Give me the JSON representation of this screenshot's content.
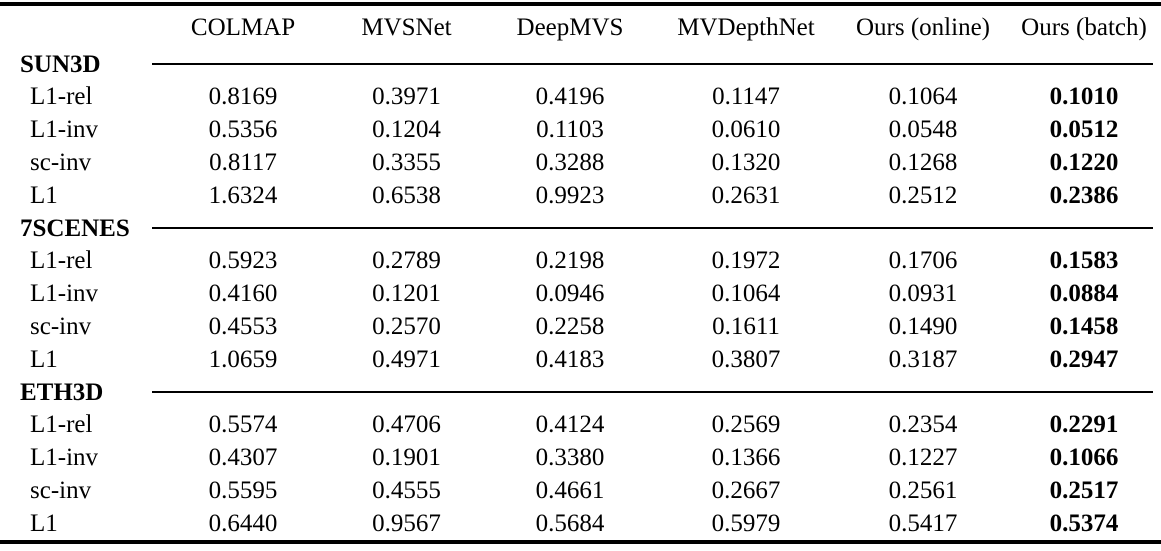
{
  "page": {
    "background": "#ffffff",
    "text_color": "#000000",
    "rule_color": "#000000"
  },
  "table": {
    "corner_label": "",
    "columns": [
      "",
      "COLMAP",
      "MVSNet",
      "DeepMVS",
      "MVDepthNet",
      "Ours (online)",
      "Ours (batch)"
    ],
    "best_column": "Ours (batch)",
    "best_column_style": "bold",
    "metrics": [
      "L1-rel",
      "L1-inv",
      "sc-inv",
      "L1"
    ],
    "sections": [
      {
        "name": "SUN3D",
        "rows": [
          {
            "metric": "L1-rel",
            "values": [
              "0.8169",
              "0.3971",
              "0.4196",
              "0.1147",
              "0.1064",
              "0.1010"
            ]
          },
          {
            "metric": "L1-inv",
            "values": [
              "0.5356",
              "0.1204",
              "0.1103",
              "0.0610",
              "0.0548",
              "0.0512"
            ]
          },
          {
            "metric": "sc-inv",
            "values": [
              "0.8117",
              "0.3355",
              "0.3288",
              "0.1320",
              "0.1268",
              "0.1220"
            ]
          },
          {
            "metric": "L1",
            "values": [
              "1.6324",
              "0.6538",
              "0.9923",
              "0.2631",
              "0.2512",
              "0.2386"
            ]
          }
        ]
      },
      {
        "name": "7SCENES",
        "rows": [
          {
            "metric": "L1-rel",
            "values": [
              "0.5923",
              "0.2789",
              "0.2198",
              "0.1972",
              "0.1706",
              "0.1583"
            ]
          },
          {
            "metric": "L1-inv",
            "values": [
              "0.4160",
              "0.1201",
              "0.0946",
              "0.1064",
              "0.0931",
              "0.0884"
            ]
          },
          {
            "metric": "sc-inv",
            "values": [
              "0.4553",
              "0.2570",
              "0.2258",
              "0.1611",
              "0.1490",
              "0.1458"
            ]
          },
          {
            "metric": "L1",
            "values": [
              "1.0659",
              "0.4971",
              "0.4183",
              "0.3807",
              "0.3187",
              "0.2947"
            ]
          }
        ]
      },
      {
        "name": "ETH3D",
        "rows": [
          {
            "metric": "L1-rel",
            "values": [
              "0.5574",
              "0.4706",
              "0.4124",
              "0.2569",
              "0.2354",
              "0.2291"
            ]
          },
          {
            "metric": "L1-inv",
            "values": [
              "0.4307",
              "0.1901",
              "0.3380",
              "0.1366",
              "0.1227",
              "0.1066"
            ]
          },
          {
            "metric": "sc-inv",
            "values": [
              "0.5595",
              "0.4555",
              "0.4661",
              "0.2667",
              "0.2561",
              "0.2517"
            ]
          },
          {
            "metric": "L1",
            "values": [
              "0.6440",
              "0.9567",
              "0.5684",
              "0.5979",
              "0.5417",
              "0.5374"
            ]
          }
        ]
      }
    ]
  }
}
